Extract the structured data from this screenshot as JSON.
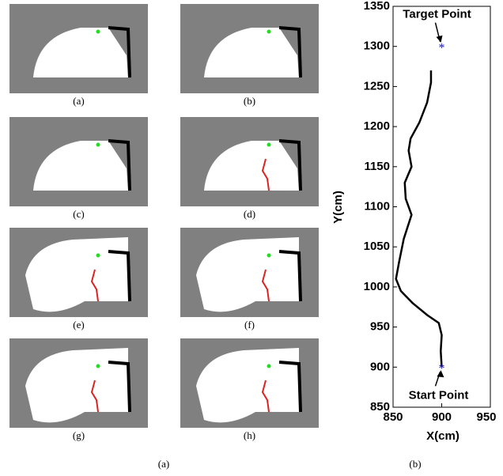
{
  "panels": [
    "(a)",
    "(b)",
    "(c)",
    "(d)",
    "(e)",
    "(f)",
    "(g)",
    "(h)"
  ],
  "captions": [
    "(a)",
    "(b)"
  ],
  "chart_data": {
    "type": "line",
    "xlabel": "X(cm)",
    "ylabel": "Y(cm)",
    "xlim": [
      850,
      950
    ],
    "ylim": [
      850,
      1350
    ],
    "xticks": [
      850,
      900,
      950
    ],
    "yticks": [
      850,
      900,
      950,
      1000,
      1050,
      1100,
      1150,
      1200,
      1250,
      1300,
      1350
    ],
    "series": [
      {
        "color": "#000000",
        "x": [
          900,
          899,
          900,
          897,
          885,
          870,
          858,
          853,
          856,
          861,
          869,
          863,
          862,
          869,
          866,
          868,
          877,
          885,
          889,
          889
        ],
        "values": [
          900,
          920,
          940,
          955,
          965,
          980,
          995,
          1010,
          1030,
          1060,
          1090,
          1110,
          1130,
          1150,
          1170,
          1185,
          1205,
          1230,
          1255,
          1270
        ]
      }
    ],
    "markers": [
      {
        "label": "Target Point",
        "x": 900,
        "y": 1300,
        "color": "#1a1aaa"
      },
      {
        "label": "Start Point",
        "x": 900,
        "y": 900,
        "color": "#1a1aaa"
      }
    ]
  }
}
